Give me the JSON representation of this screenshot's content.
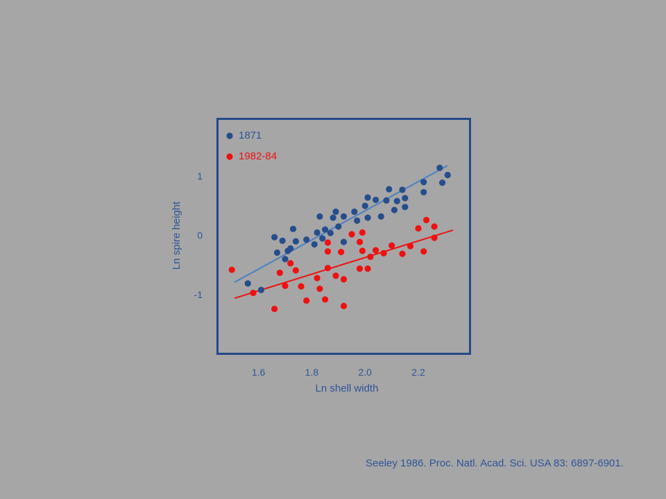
{
  "chart_data": {
    "type": "scatter",
    "title": "",
    "xlabel": "Ln shell width",
    "ylabel": "Ln spire height",
    "xlim": [
      1.45,
      2.39
    ],
    "ylim": [
      -1.98,
      1.95
    ],
    "x_ticks": [
      {
        "value": 1.6,
        "label": "1.6"
      },
      {
        "value": 1.8,
        "label": "1.8"
      },
      {
        "value": 2.0,
        "label": "2.0"
      },
      {
        "value": 2.2,
        "label": "2.2"
      }
    ],
    "y_ticks": [
      {
        "value": 1,
        "label": "1"
      },
      {
        "value": 0,
        "label": "0"
      },
      {
        "value": -1,
        "label": "-1"
      }
    ],
    "grid": false,
    "legend_position": "top-left",
    "series": [
      {
        "name": "1871",
        "color": "#264d8c",
        "line_color": "#4a7fc1",
        "fit": [
          [
            1.51,
            -0.79
          ],
          [
            2.31,
            1.18
          ]
        ],
        "points": [
          [
            1.66,
            -0.03
          ],
          [
            1.67,
            -0.29
          ],
          [
            1.69,
            -0.09
          ],
          [
            1.7,
            -0.4
          ],
          [
            1.71,
            -0.26
          ],
          [
            1.72,
            -0.22
          ],
          [
            1.73,
            0.11
          ],
          [
            1.74,
            -0.1
          ],
          [
            1.78,
            -0.07
          ],
          [
            1.81,
            -0.15
          ],
          [
            1.82,
            0.05
          ],
          [
            1.83,
            0.32
          ],
          [
            1.84,
            -0.05
          ],
          [
            1.85,
            0.1
          ],
          [
            1.87,
            0.04
          ],
          [
            1.88,
            0.3
          ],
          [
            1.89,
            0.4
          ],
          [
            1.9,
            0.15
          ],
          [
            1.92,
            0.32
          ],
          [
            1.92,
            -0.11
          ],
          [
            1.96,
            0.4
          ],
          [
            1.97,
            0.25
          ],
          [
            2.0,
            0.5
          ],
          [
            2.01,
            0.64
          ],
          [
            2.01,
            0.3
          ],
          [
            2.04,
            0.6
          ],
          [
            2.06,
            0.32
          ],
          [
            2.08,
            0.59
          ],
          [
            2.09,
            0.78
          ],
          [
            2.11,
            0.43
          ],
          [
            2.12,
            0.58
          ],
          [
            2.14,
            0.77
          ],
          [
            2.15,
            0.48
          ],
          [
            2.15,
            0.63
          ],
          [
            2.22,
            0.9
          ],
          [
            2.22,
            0.73
          ],
          [
            2.28,
            1.14
          ],
          [
            2.29,
            0.89
          ],
          [
            2.31,
            1.02
          ],
          [
            1.56,
            -0.81
          ],
          [
            1.61,
            -0.92
          ]
        ]
      },
      {
        "name": "1982-84",
        "color": "#ee1111",
        "line_color": "#ee1111",
        "fit": [
          [
            1.51,
            -1.06
          ],
          [
            2.33,
            0.09
          ]
        ],
        "points": [
          [
            1.5,
            -0.58
          ],
          [
            1.58,
            -0.97
          ],
          [
            1.66,
            -1.24
          ],
          [
            1.68,
            -0.63
          ],
          [
            1.7,
            -0.85
          ],
          [
            1.72,
            -0.47
          ],
          [
            1.74,
            -0.59
          ],
          [
            1.76,
            -0.86
          ],
          [
            1.78,
            -1.1
          ],
          [
            1.82,
            -0.72
          ],
          [
            1.83,
            -0.9
          ],
          [
            1.85,
            -1.08
          ],
          [
            1.86,
            -0.12
          ],
          [
            1.86,
            -0.27
          ],
          [
            1.86,
            -0.55
          ],
          [
            1.89,
            -0.68
          ],
          [
            1.91,
            -0.28
          ],
          [
            1.92,
            -1.19
          ],
          [
            1.92,
            -0.74
          ],
          [
            1.95,
            0.02
          ],
          [
            1.98,
            -0.56
          ],
          [
            1.98,
            -0.11
          ],
          [
            1.99,
            -0.26
          ],
          [
            1.99,
            0.05
          ],
          [
            2.01,
            -0.56
          ],
          [
            2.02,
            -0.36
          ],
          [
            2.04,
            -0.25
          ],
          [
            2.07,
            -0.3
          ],
          [
            2.1,
            -0.17
          ],
          [
            2.14,
            -0.31
          ],
          [
            2.17,
            -0.18
          ],
          [
            2.2,
            0.12
          ],
          [
            2.22,
            -0.27
          ],
          [
            2.23,
            0.26
          ],
          [
            2.26,
            0.15
          ],
          [
            2.26,
            -0.04
          ]
        ]
      }
    ]
  },
  "citation": "Seeley 1986. Proc. Natl. Acad. Sci. USA 83: 6897-6901."
}
